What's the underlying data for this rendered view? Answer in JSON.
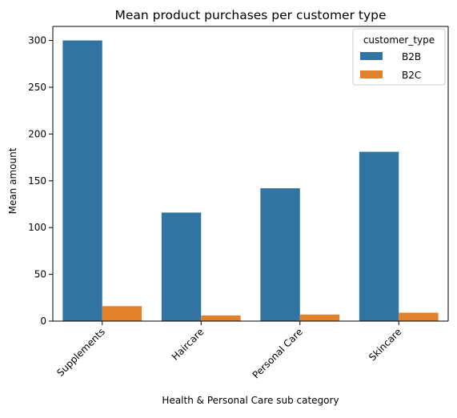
{
  "chart_data": {
    "type": "bar",
    "title": "Mean product purchases per customer type",
    "xlabel": "Health & Personal Care sub category",
    "ylabel": "Mean amount",
    "categories": [
      "Supplements",
      "Haircare",
      "Personal Care",
      "Skincare"
    ],
    "series": [
      {
        "name": "B2B",
        "color": "#3274a1",
        "values": [
          300,
          116,
          142,
          181
        ]
      },
      {
        "name": "B2C",
        "color": "#e1812c",
        "values": [
          16,
          6,
          7,
          9
        ]
      }
    ],
    "ylim": [
      0,
      315
    ],
    "yticks": [
      0,
      50,
      100,
      150,
      200,
      250,
      300
    ],
    "grid": false,
    "legend": {
      "title": "customer_type",
      "placement": "top-right"
    }
  }
}
